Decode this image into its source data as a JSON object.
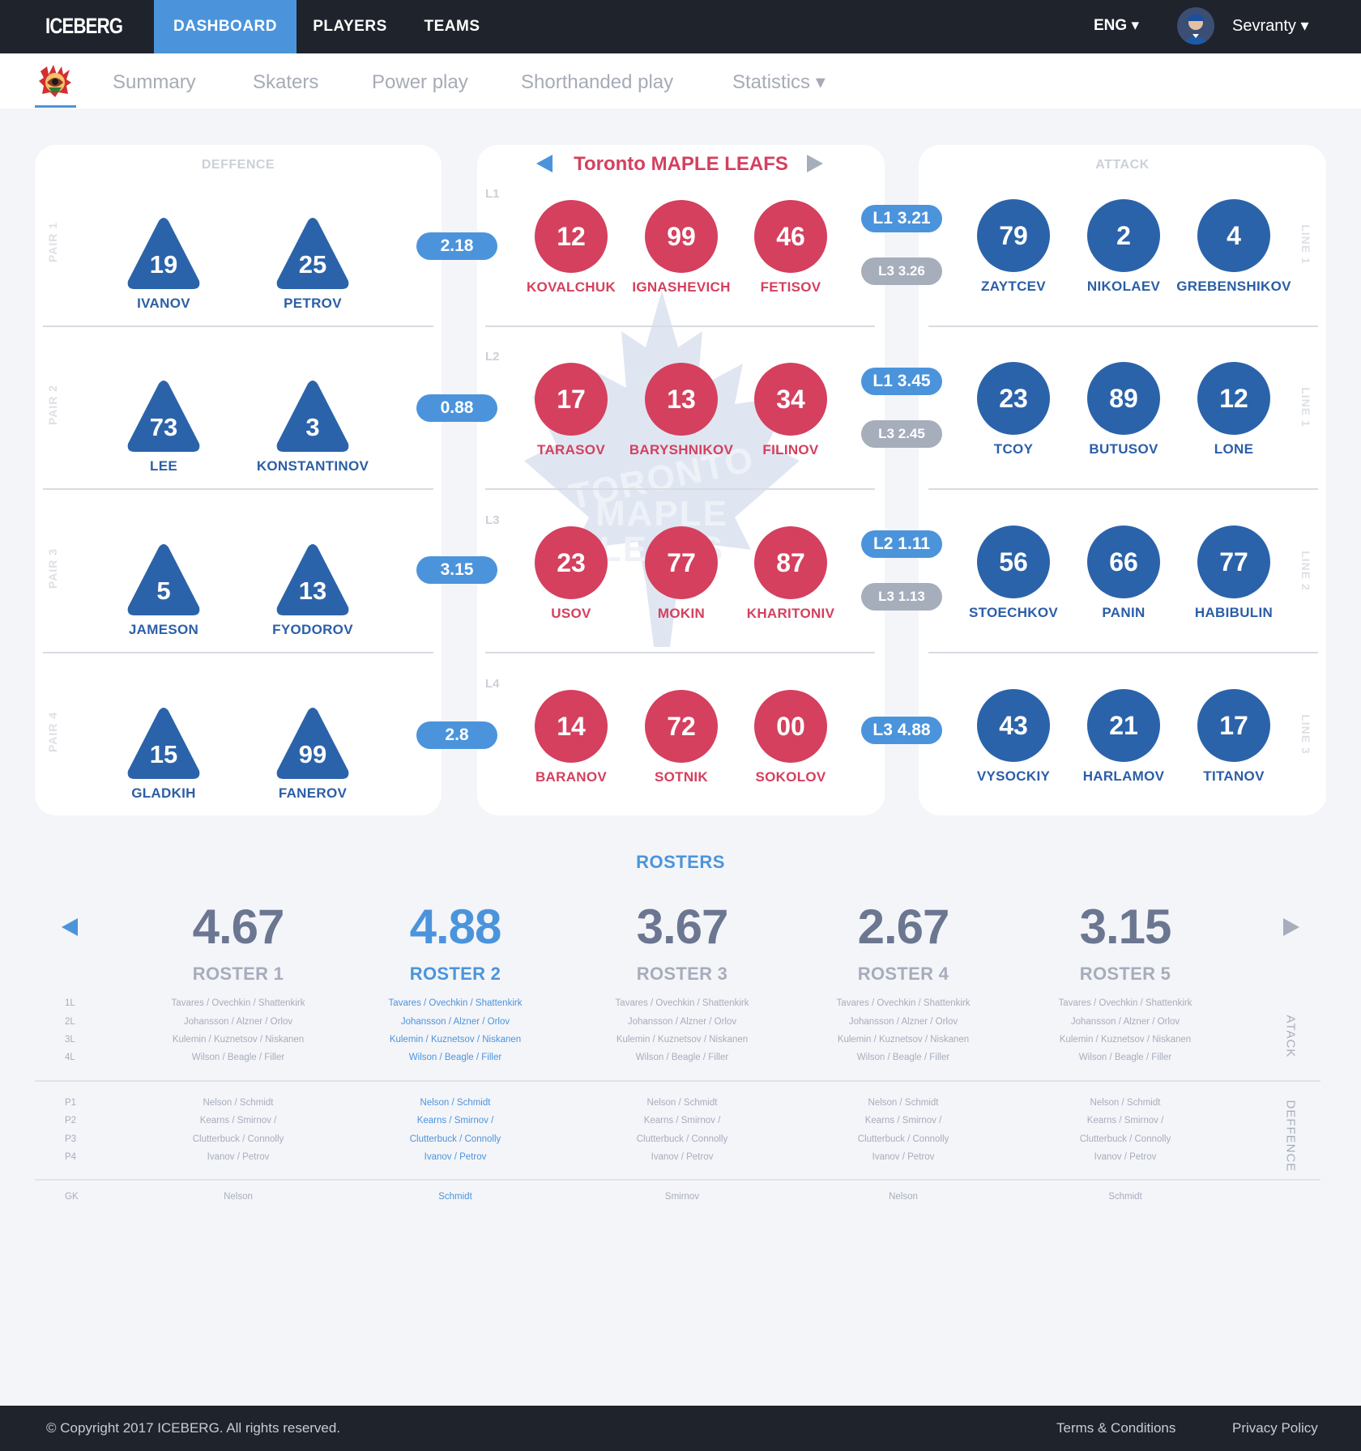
{
  "app": {
    "logo": "ICEBERG"
  },
  "nav": {
    "items": [
      {
        "label": "DASHBOARD"
      },
      {
        "label": "PLAYERS"
      },
      {
        "label": "TEAMS"
      }
    ],
    "active": "DASHBOARD"
  },
  "header": {
    "language": "ENG ▾",
    "user": "Sevranty ▾"
  },
  "subnav": {
    "tabs": [
      {
        "label": "Summary"
      },
      {
        "label": "Skaters"
      },
      {
        "label": "Power play"
      },
      {
        "label": "Shorthanded play"
      },
      {
        "label": "Statistics ▾"
      }
    ]
  },
  "defence": {
    "title": "DEFFENCE",
    "pairs": [
      {
        "label": "PAIR 1",
        "score": "2.18",
        "players": [
          {
            "num": "19",
            "name": "IVANOV"
          },
          {
            "num": "25",
            "name": "PETROV"
          }
        ]
      },
      {
        "label": "PAIR 2",
        "score": "0.88",
        "players": [
          {
            "num": "73",
            "name": "LEE"
          },
          {
            "num": "3",
            "name": "KONSTANTINOV"
          }
        ]
      },
      {
        "label": "PAIR 3",
        "score": "3.15",
        "players": [
          {
            "num": "5",
            "name": "JAMESON"
          },
          {
            "num": "13",
            "name": "FYODOROV"
          }
        ]
      },
      {
        "label": "PAIR 4",
        "score": "2.8",
        "players": [
          {
            "num": "15",
            "name": "GLADKIH"
          },
          {
            "num": "99",
            "name": "FANEROV"
          }
        ]
      }
    ]
  },
  "opponent": {
    "team_name": "Toronto MAPLE LEAFS",
    "watermark": [
      "TORONTO",
      "MAPLE",
      "LEAFS"
    ],
    "lines": [
      {
        "label": "L1",
        "players": [
          {
            "num": "12",
            "name": "KOVALCHUK"
          },
          {
            "num": "99",
            "name": "IGNASHEVICH"
          },
          {
            "num": "46",
            "name": "FETISOV"
          }
        ],
        "matchups": [
          {
            "text": "L1 3.21",
            "type": "primary"
          },
          {
            "text": "L3 3.26",
            "type": "secondary"
          }
        ]
      },
      {
        "label": "L2",
        "players": [
          {
            "num": "17",
            "name": "TARASOV"
          },
          {
            "num": "13",
            "name": "BARYSHNIKOV"
          },
          {
            "num": "34",
            "name": "FILINOV"
          }
        ],
        "matchups": [
          {
            "text": "L1 3.45",
            "type": "primary"
          },
          {
            "text": "L3 2.45",
            "type": "secondary"
          }
        ]
      },
      {
        "label": "L3",
        "players": [
          {
            "num": "23",
            "name": "USOV"
          },
          {
            "num": "77",
            "name": "MOKIN"
          },
          {
            "num": "87",
            "name": "KHARITONIV"
          }
        ],
        "matchups": [
          {
            "text": "L2 1.11",
            "type": "primary"
          },
          {
            "text": "L3 1.13",
            "type": "secondary"
          }
        ]
      },
      {
        "label": "L4",
        "players": [
          {
            "num": "14",
            "name": "BARANOV"
          },
          {
            "num": "72",
            "name": "SOTNIK"
          },
          {
            "num": "00",
            "name": "SOKOLOV"
          }
        ],
        "matchups": [
          {
            "text": "L3 4.88",
            "type": "primary"
          }
        ]
      }
    ]
  },
  "attack": {
    "title": "ATTACK",
    "lines": [
      {
        "label": "LINE 1",
        "players": [
          {
            "num": "79",
            "name": "ZAYTCEV"
          },
          {
            "num": "2",
            "name": "NIKOLAEV"
          },
          {
            "num": "4",
            "name": "GREBENSHIKOV"
          }
        ]
      },
      {
        "label": "LINE 1",
        "players": [
          {
            "num": "23",
            "name": "TCOY"
          },
          {
            "num": "89",
            "name": "BUTUSOV"
          },
          {
            "num": "12",
            "name": "LONE"
          }
        ]
      },
      {
        "label": "LINE 2",
        "players": [
          {
            "num": "56",
            "name": "STOECHKOV"
          },
          {
            "num": "66",
            "name": "PANIN"
          },
          {
            "num": "77",
            "name": "HABIBULIN"
          }
        ]
      },
      {
        "label": "LINE 3",
        "players": [
          {
            "num": "43",
            "name": "VYSOCKIY"
          },
          {
            "num": "21",
            "name": "HARLAMOV"
          },
          {
            "num": "17",
            "name": "TITANOV"
          }
        ]
      }
    ]
  },
  "rosters": {
    "title": "ROSTERS",
    "attack_label": "ATACK",
    "defence_label": "DEFFENCE",
    "row_labels": {
      "attack": [
        "1L",
        "2L",
        "3L",
        "4L"
      ],
      "defence": [
        "P1",
        "P2",
        "P3",
        "P4"
      ],
      "goalie": "GK"
    },
    "selected": 1,
    "items": [
      {
        "score": "4.67",
        "name": "ROSTER 1",
        "attack": [
          "Tavares / Ovechkin / Shattenkirk",
          "Johansson / Alzner / Orlov",
          "Kulemin / Kuznetsov / Niskanen",
          "Wilson / Beagle / Filler"
        ],
        "defence": [
          "Nelson / Schmidt",
          "Kearns / Smirnov /",
          "Clutterbuck / Connolly",
          "Ivanov / Petrov"
        ],
        "goalie": "Nelson"
      },
      {
        "score": "4.88",
        "name": "ROSTER 2",
        "attack": [
          "Tavares / Ovechkin / Shattenkirk",
          "Johansson / Alzner / Orlov",
          "Kulemin / Kuznetsov / Niskanen",
          "Wilson / Beagle / Filler"
        ],
        "defence": [
          "Nelson / Schmidt",
          "Kearns / Smirnov /",
          "Clutterbuck / Connolly",
          "Ivanov / Petrov"
        ],
        "goalie": "Schmidt"
      },
      {
        "score": "3.67",
        "name": "ROSTER 3",
        "attack": [
          "Tavares / Ovechkin / Shattenkirk",
          "Johansson / Alzner / Orlov",
          "Kulemin / Kuznetsov / Niskanen",
          "Wilson / Beagle / Filler"
        ],
        "defence": [
          "Nelson / Schmidt",
          "Kearns / Smirnov /",
          "Clutterbuck / Connolly",
          "Ivanov / Petrov"
        ],
        "goalie": "Smirnov"
      },
      {
        "score": "2.67",
        "name": "ROSTER 4",
        "attack": [
          "Tavares / Ovechkin / Shattenkirk",
          "Johansson / Alzner / Orlov",
          "Kulemin / Kuznetsov / Niskanen",
          "Wilson / Beagle / Filler"
        ],
        "defence": [
          "Nelson / Schmidt",
          "Kearns / Smirnov /",
          "Clutterbuck / Connolly",
          "Ivanov / Petrov"
        ],
        "goalie": "Nelson"
      },
      {
        "score": "3.15",
        "name": "ROSTER 5",
        "attack": [
          "Tavares / Ovechkin / Shattenkirk",
          "Johansson / Alzner / Orlov",
          "Kulemin / Kuznetsov / Niskanen",
          "Wilson / Beagle / Filler"
        ],
        "defence": [
          "Nelson / Schmidt",
          "Kearns / Smirnov /",
          "Clutterbuck / Connolly",
          "Ivanov / Petrov"
        ],
        "goalie": "Schmidt"
      }
    ]
  },
  "footer": {
    "copyright": "© Copyright 2017 ICEBERG. All rights reserved.",
    "links": [
      {
        "label": "Terms & Conditions"
      },
      {
        "label": "Privacy Policy"
      }
    ]
  },
  "colors": {
    "accent": "#4b94dc",
    "opponent": "#d4405e",
    "own": "#2b63aa",
    "dark": "#1f232c",
    "muted": "#a6adbb"
  }
}
